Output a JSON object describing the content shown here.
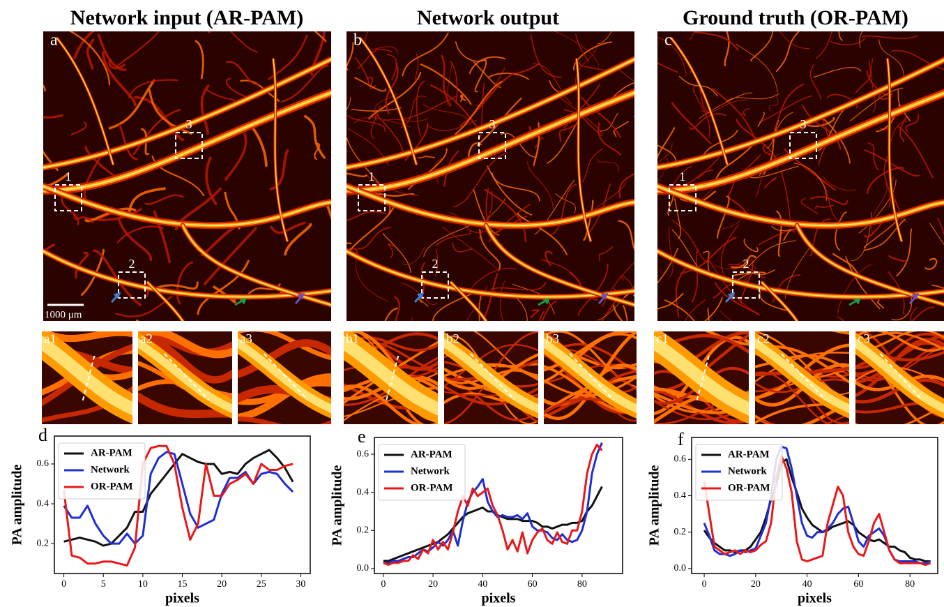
{
  "panels": [
    {
      "title": "Network input (AR-PAM)",
      "label": "a",
      "box_labels": [
        "1",
        "2",
        "3"
      ],
      "scale_bar": "1000 μm"
    },
    {
      "title": "Network output",
      "label": "b",
      "box_labels": [
        "1",
        "2",
        "3"
      ]
    },
    {
      "title": "Ground truth (OR-PAM)",
      "label": "c",
      "box_labels": [
        "1",
        "2",
        "3"
      ]
    }
  ],
  "insets": [
    [
      "a1",
      "a2",
      "a3"
    ],
    [
      "b1",
      "b2",
      "b3"
    ],
    [
      "c1",
      "c2",
      "c3"
    ]
  ],
  "chart_data": [
    {
      "type": "line",
      "panel_label": "d",
      "x_label": "pixels",
      "y_label": "PA amplitude",
      "x": [
        0,
        1,
        2,
        3,
        4,
        5,
        6,
        7,
        8,
        9,
        10,
        11,
        12,
        13,
        14,
        15,
        16,
        17,
        18,
        19,
        20,
        21,
        22,
        23,
        24,
        25,
        26,
        27,
        28,
        29
      ],
      "xlim": [
        -1.2,
        31.2
      ],
      "xticks": [
        0,
        5,
        10,
        15,
        20,
        25,
        30
      ],
      "ylim": [
        0.05,
        0.74
      ],
      "yticks": [
        0.2,
        0.4,
        0.6
      ],
      "series": [
        {
          "name": "AR-PAM",
          "color": "#111111",
          "values": [
            0.21,
            0.22,
            0.23,
            0.22,
            0.21,
            0.19,
            0.2,
            0.24,
            0.28,
            0.36,
            0.36,
            0.45,
            0.5,
            0.55,
            0.6,
            0.65,
            0.63,
            0.61,
            0.6,
            0.6,
            0.55,
            0.56,
            0.55,
            0.6,
            0.63,
            0.65,
            0.67,
            0.63,
            0.58,
            0.51
          ]
        },
        {
          "name": "Network",
          "color": "#1f2fd0",
          "values": [
            0.39,
            0.33,
            0.33,
            0.39,
            0.3,
            0.24,
            0.2,
            0.2,
            0.25,
            0.2,
            0.24,
            0.55,
            0.63,
            0.66,
            0.65,
            0.5,
            0.35,
            0.28,
            0.3,
            0.32,
            0.45,
            0.53,
            0.53,
            0.56,
            0.5,
            0.55,
            0.56,
            0.55,
            0.5,
            0.46
          ]
        },
        {
          "name": "OR-PAM",
          "color": "#e8191a",
          "values": [
            0.47,
            0.14,
            0.13,
            0.1,
            0.1,
            0.11,
            0.11,
            0.1,
            0.09,
            0.18,
            0.6,
            0.68,
            0.69,
            0.69,
            0.6,
            0.38,
            0.22,
            0.3,
            0.6,
            0.44,
            0.44,
            0.5,
            0.52,
            0.55,
            0.5,
            0.6,
            0.57,
            0.57,
            0.59,
            0.6
          ]
        }
      ]
    },
    {
      "type": "line",
      "panel_label": "e",
      "x_label": "pixels",
      "y_label": "PA amplitude",
      "x": [
        0,
        2,
        4,
        6,
        8,
        10,
        12,
        14,
        16,
        18,
        20,
        22,
        24,
        26,
        28,
        30,
        32,
        34,
        36,
        38,
        40,
        42,
        44,
        46,
        48,
        50,
        52,
        54,
        56,
        58,
        60,
        62,
        64,
        66,
        68,
        70,
        72,
        74,
        76,
        78,
        80,
        82,
        84,
        86,
        88
      ],
      "xlim": [
        -3.6,
        96.3
      ],
      "xticks": [
        0,
        20,
        40,
        60,
        80
      ],
      "ylim": [
        -0.026,
        0.688
      ],
      "yticks": [
        {
          "value": 0,
          "label": "0.0"
        },
        0.2,
        0.4,
        0.6
      ],
      "series": [
        {
          "name": "AR-PAM",
          "color": "#111111",
          "values": [
            0.04,
            0.04,
            0.05,
            0.06,
            0.07,
            0.08,
            0.09,
            0.1,
            0.11,
            0.12,
            0.13,
            0.14,
            0.16,
            0.18,
            0.21,
            0.24,
            0.27,
            0.29,
            0.3,
            0.31,
            0.32,
            0.3,
            0.3,
            0.28,
            0.27,
            0.26,
            0.26,
            0.26,
            0.25,
            0.25,
            0.25,
            0.24,
            0.22,
            0.22,
            0.21,
            0.22,
            0.23,
            0.23,
            0.24,
            0.24,
            0.25,
            0.3,
            0.33,
            0.38,
            0.43
          ]
        },
        {
          "name": "Network",
          "color": "#1f2fd0",
          "values": [
            0.03,
            0.03,
            0.04,
            0.04,
            0.05,
            0.06,
            0.06,
            0.08,
            0.1,
            0.09,
            0.11,
            0.14,
            0.12,
            0.15,
            0.2,
            0.12,
            0.25,
            0.35,
            0.4,
            0.43,
            0.47,
            0.35,
            0.3,
            0.27,
            0.28,
            0.27,
            0.27,
            0.28,
            0.26,
            0.29,
            0.22,
            0.2,
            0.2,
            0.19,
            0.16,
            0.15,
            0.18,
            0.15,
            0.14,
            0.15,
            0.2,
            0.3,
            0.5,
            0.6,
            0.66
          ]
        },
        {
          "name": "OR-PAM",
          "color": "#e8191a",
          "values": [
            0.03,
            0.02,
            0.03,
            0.03,
            0.04,
            0.04,
            0.07,
            0.05,
            0.1,
            0.08,
            0.15,
            0.1,
            0.14,
            0.1,
            0.19,
            0.3,
            0.38,
            0.33,
            0.42,
            0.38,
            0.4,
            0.42,
            0.33,
            0.28,
            0.2,
            0.1,
            0.15,
            0.09,
            0.19,
            0.08,
            0.15,
            0.19,
            0.21,
            0.15,
            0.13,
            0.19,
            0.14,
            0.13,
            0.2,
            0.2,
            0.3,
            0.5,
            0.6,
            0.65,
            0.62
          ]
        }
      ]
    },
    {
      "type": "line",
      "panel_label": "f",
      "x_label": "pixels",
      "y_label": "PA amplitude",
      "x": [
        0,
        2,
        4,
        6,
        8,
        10,
        12,
        14,
        16,
        18,
        20,
        22,
        24,
        26,
        28,
        30,
        32,
        34,
        36,
        38,
        40,
        42,
        44,
        46,
        48,
        50,
        52,
        54,
        56,
        58,
        60,
        62,
        64,
        66,
        68,
        70,
        72,
        74,
        76,
        78,
        80,
        82,
        84,
        86,
        88
      ],
      "xlim": [
        -4.9,
        90.8
      ],
      "xticks": [
        0,
        20,
        40,
        60,
        80
      ],
      "ylim": [
        -0.027,
        0.72
      ],
      "yticks": [
        {
          "value": 0,
          "label": "0.0"
        },
        0.2,
        0.4,
        0.6
      ],
      "series": [
        {
          "name": "AR-PAM",
          "color": "#111111",
          "values": [
            0.21,
            0.17,
            0.14,
            0.12,
            0.1,
            0.1,
            0.09,
            0.1,
            0.1,
            0.12,
            0.16,
            0.2,
            0.28,
            0.38,
            0.46,
            0.58,
            0.6,
            0.5,
            0.42,
            0.33,
            0.28,
            0.24,
            0.22,
            0.2,
            0.21,
            0.23,
            0.24,
            0.25,
            0.26,
            0.24,
            0.2,
            0.18,
            0.16,
            0.15,
            0.16,
            0.14,
            0.12,
            0.12,
            0.1,
            0.09,
            0.06,
            0.05,
            0.05,
            0.04,
            0.04
          ]
        },
        {
          "name": "Network",
          "color": "#1f2fd0",
          "values": [
            0.25,
            0.18,
            0.1,
            0.08,
            0.08,
            0.07,
            0.08,
            0.1,
            0.09,
            0.1,
            0.11,
            0.18,
            0.25,
            0.4,
            0.6,
            0.67,
            0.66,
            0.55,
            0.4,
            0.25,
            0.18,
            0.17,
            0.2,
            0.2,
            0.22,
            0.25,
            0.3,
            0.33,
            0.34,
            0.25,
            0.15,
            0.12,
            0.18,
            0.2,
            0.22,
            0.18,
            0.1,
            0.05,
            0.04,
            0.04,
            0.04,
            0.04,
            0.03,
            0.03,
            0.04
          ]
        },
        {
          "name": "OR-PAM",
          "color": "#e8191a",
          "values": [
            0.48,
            0.3,
            0.12,
            0.1,
            0.08,
            0.09,
            0.1,
            0.08,
            0.1,
            0.09,
            0.1,
            0.13,
            0.15,
            0.25,
            0.5,
            0.62,
            0.55,
            0.42,
            0.15,
            0.05,
            0.04,
            0.05,
            0.06,
            0.07,
            0.25,
            0.35,
            0.45,
            0.4,
            0.2,
            0.12,
            0.08,
            0.07,
            0.15,
            0.25,
            0.3,
            0.2,
            0.1,
            0.05,
            0.03,
            0.03,
            0.03,
            0.03,
            0.03,
            0.02,
            0.03
          ]
        }
      ]
    }
  ]
}
